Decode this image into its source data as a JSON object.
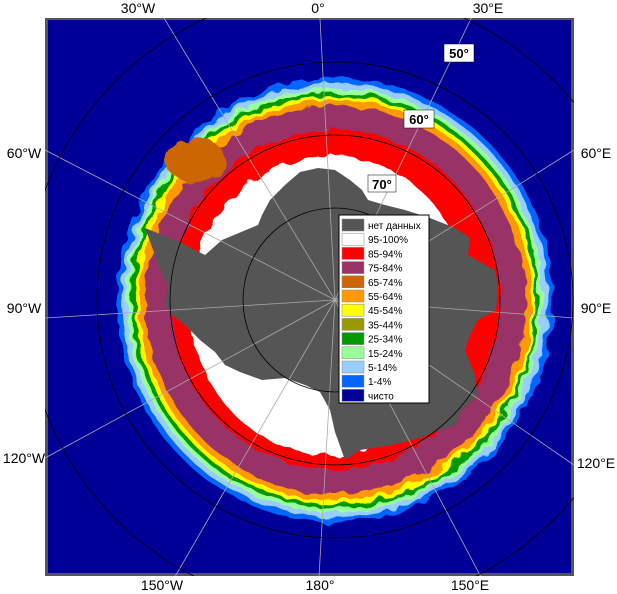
{
  "longitude_labels": {
    "top": [
      "30°W",
      "0°",
      "30°E"
    ],
    "left": [
      "60°W",
      "90°W",
      "120°W"
    ],
    "right": [
      "60°E",
      "90°E",
      "120°E"
    ],
    "bottom": [
      "150°W",
      "180°",
      "150°E"
    ]
  },
  "latitude_labels": [
    "50°",
    "60°",
    "70°"
  ],
  "legend": {
    "items": [
      {
        "label": "нет данных",
        "color": "#555555"
      },
      {
        "label": "95-100%",
        "color": "#ffffff"
      },
      {
        "label": "85-94%",
        "color": "#ff0000"
      },
      {
        "label": "75-84%",
        "color": "#993366"
      },
      {
        "label": "65-74%",
        "color": "#cc6600"
      },
      {
        "label": "55-64%",
        "color": "#ff9900"
      },
      {
        "label": "45-54%",
        "color": "#ffff00"
      },
      {
        "label": "35-44%",
        "color": "#999900"
      },
      {
        "label": "25-34%",
        "color": "#009900"
      },
      {
        "label": "15-24%",
        "color": "#99ff99"
      },
      {
        "label": "5-14%",
        "color": "#99ccff"
      },
      {
        "label": "1-4%",
        "color": "#0066ff"
      },
      {
        "label": "чисто",
        "color": "#000099"
      }
    ]
  },
  "colors": {
    "ocean": "#000099",
    "land": "#555555",
    "grid": "#aaaaaa",
    "frame": "#555555"
  }
}
